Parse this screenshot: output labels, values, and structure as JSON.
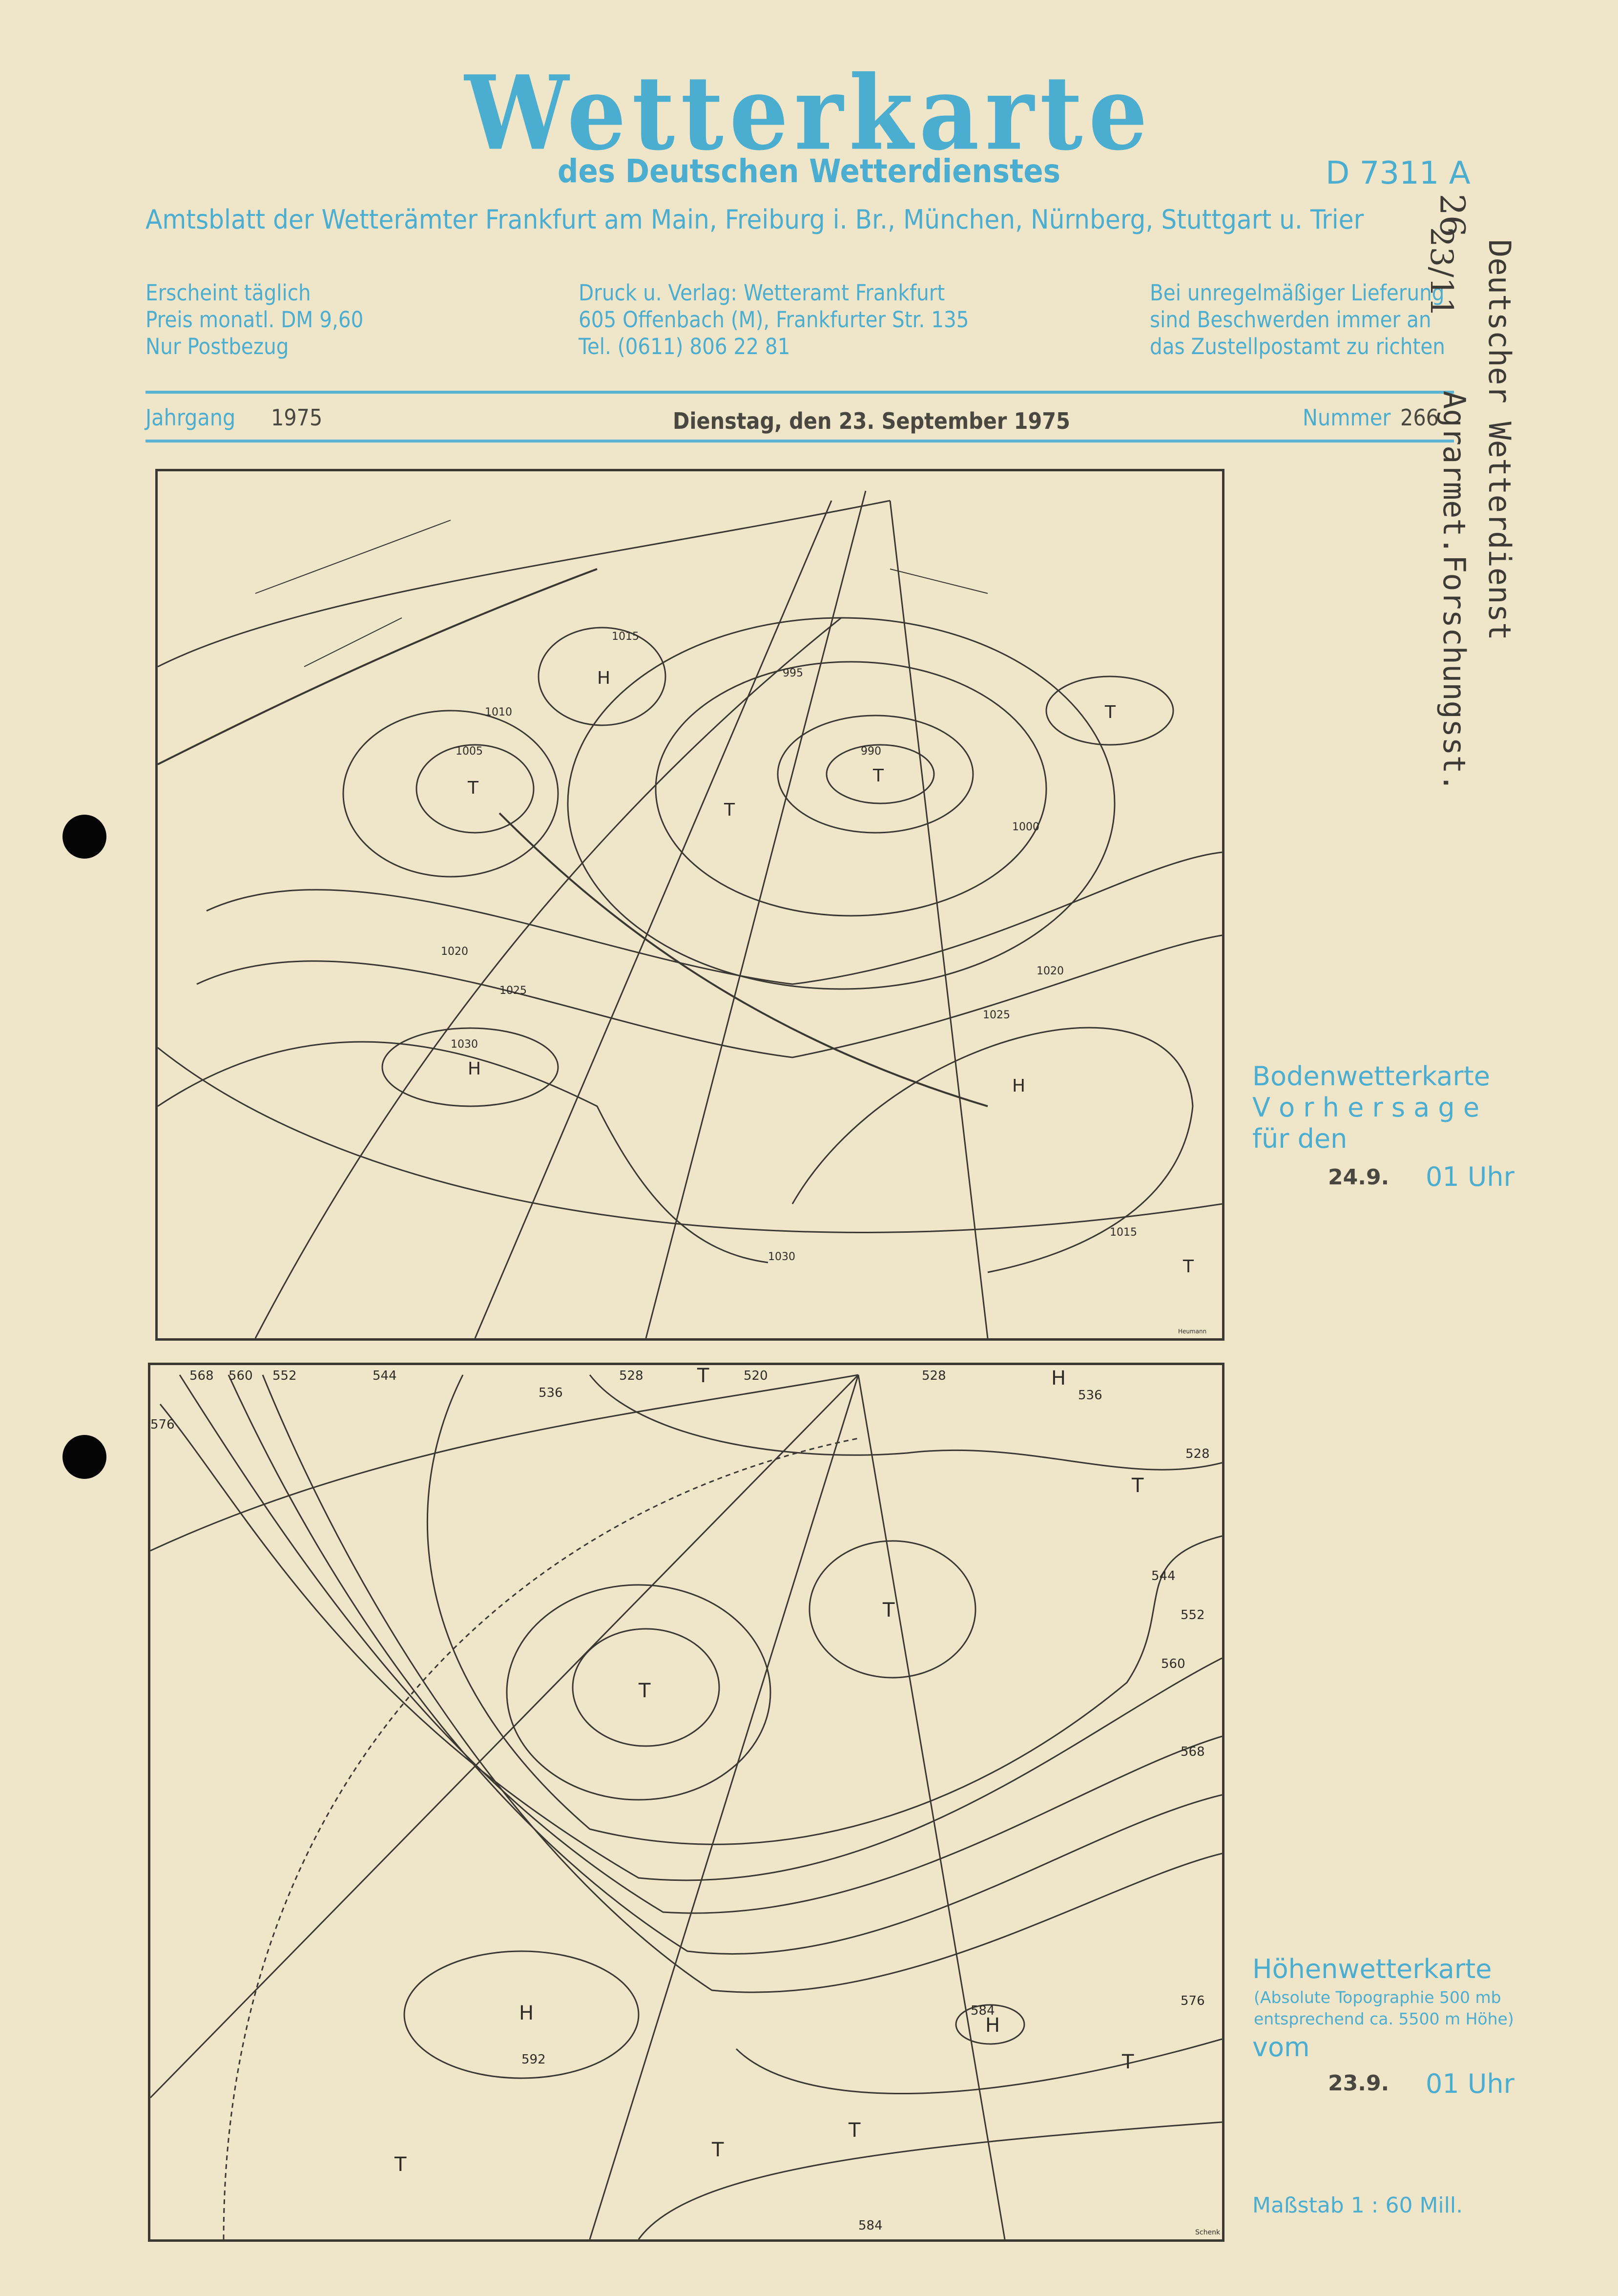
{
  "header": {
    "title": "Wetterkarte",
    "subtitle": "des Deutschen Wetterdienstes",
    "code": "D 7311 A",
    "amtsblatt": "Amtsblatt der Wetterämter Frankfurt am Main, Freiburg i. Br., München, Nürnberg, Stuttgart u. Trier",
    "col1": [
      "Erscheint täglich",
      "Preis monatl. DM 9,60",
      "Nur Postbezug"
    ],
    "col2": [
      "Druck u. Verlag: Wetteramt Frankfurt",
      "605 Offenbach (M), Frankfurter Str. 135",
      "Tel. (0611) 806 22 81"
    ],
    "col3": [
      "Bei unregelmäßiger Lieferung",
      "sind  Beschwerden  immer an",
      "das Zustellpostamt zu richten"
    ]
  },
  "issue": {
    "jahrgang_label": "Jahrgang",
    "jahrgang": "1975",
    "date": "Dienstag, den 23. September 1975",
    "nummer_label": "Nummer",
    "nummer": "266"
  },
  "stamp": {
    "line1": "Deutscher Wetterdienst",
    "line2": "Agrarmet.Forschungsst.",
    "handwritten1": "26",
    "handwritten2": "23/11"
  },
  "map1": {
    "title_line1": "Bodenwetterkarte",
    "title_line2": "V o r h e r s a g e",
    "title_line3": "für den",
    "date": "24.9.",
    "time": "01 Uhr",
    "isobars": [
      "1005",
      "1010",
      "1015",
      "1020",
      "1025",
      "1030",
      "1000",
      "995",
      "990",
      "1025",
      "1015",
      "1020",
      "1030"
    ],
    "centers": [
      "H",
      "T",
      "H",
      "T",
      "T",
      "T",
      "H",
      "H",
      "T"
    ],
    "signature": "Heumann"
  },
  "map2": {
    "title": "Höhenwetterkarte",
    "subtitle_line1": "(Absolute Topographie 500 mb",
    "subtitle_line2": "entsprechend ca. 5500 m Höhe)",
    "vom": "vom",
    "date": "23.9.",
    "time": "01 Uhr",
    "contours": [
      "568",
      "560",
      "552",
      "544",
      "536",
      "528",
      "520",
      "528",
      "536",
      "528",
      "544",
      "552",
      "560",
      "568",
      "576",
      "584",
      "592",
      "584",
      "576"
    ],
    "centers": [
      "T",
      "H",
      "T",
      "T",
      "T",
      "H",
      "T",
      "T",
      "H",
      "T",
      "T"
    ],
    "scale": "Maßstab 1 : 60 Mill.",
    "signature": "Schenk"
  },
  "colors": {
    "print_blue": "#4badd0",
    "paper": "#efe5c9",
    "ink": "#3b3833"
  }
}
